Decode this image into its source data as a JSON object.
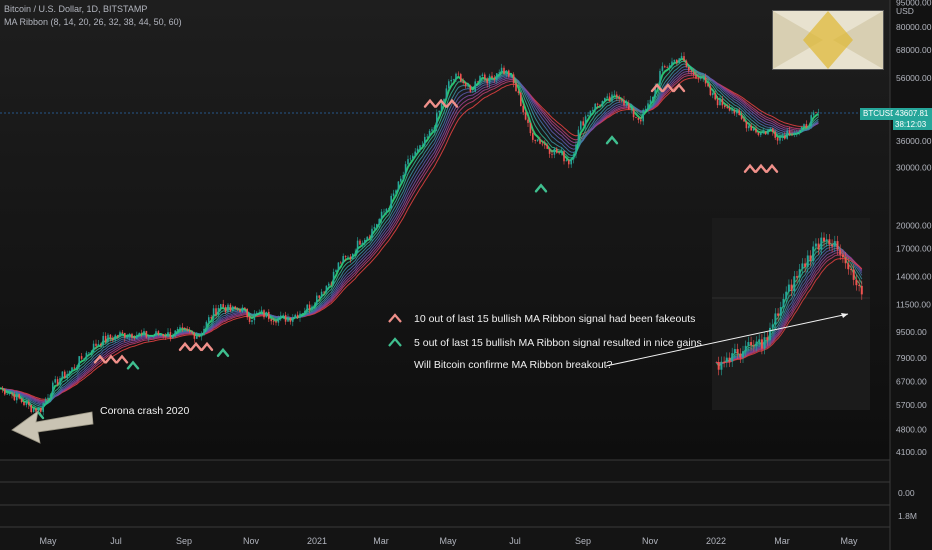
{
  "header": {
    "symbol_line": "Bitcoin / U.S. Dollar, 1D, BITSTAMP",
    "indicator_line": "MA Ribbon (8, 14, 20, 26, 32, 38, 44, 50, 60)"
  },
  "price_label": {
    "ticker": "BTCUSD",
    "price": "43607.81",
    "countdown": "38:12:03"
  },
  "chart_data": {
    "type": "line",
    "y_scale": "log",
    "ylim": [
      3800,
      102000
    ],
    "currency_label": "USD",
    "y_ticks": [
      "95000.00",
      "80000.00",
      "68000.00",
      "56000.00",
      "36000.00",
      "30000.00",
      "20000.00",
      "17000.00",
      "14000.00",
      "11500.00",
      "9500.00",
      "7900.00",
      "6700.00",
      "5700.00",
      "4800.00",
      "4100.00"
    ],
    "x_ticks": [
      "May",
      "Jul",
      "Sep",
      "Nov",
      "2021",
      "Mar",
      "May",
      "Jul",
      "Sep",
      "Nov",
      "2022",
      "Mar",
      "May"
    ],
    "x": [
      0,
      10,
      20,
      30,
      40,
      50,
      60,
      70,
      80,
      90,
      100,
      110,
      120,
      130,
      140,
      150,
      160,
      170,
      180,
      190,
      200,
      210,
      220,
      230,
      240,
      250,
      260,
      270,
      280,
      290,
      300,
      310,
      320,
      330,
      340,
      350,
      360,
      370,
      380,
      390,
      400,
      410,
      420,
      430,
      440,
      450,
      460,
      470,
      480,
      490,
      500,
      510,
      520,
      530,
      540,
      550,
      560,
      570,
      580,
      590,
      600,
      610,
      620,
      630,
      640,
      650,
      660,
      670,
      680,
      690,
      700,
      710,
      720,
      730,
      740,
      750,
      760,
      770,
      780,
      790,
      800,
      810,
      820
    ],
    "series": [
      {
        "values": [
          6400,
          6200,
          5900,
          5600,
          5500,
          6300,
          6900,
          7200,
          7800,
          8400,
          8900,
          9100,
          9300,
          9400,
          9300,
          9200,
          9400,
          9300,
          9500,
          9400,
          9300,
          10500,
          11500,
          11000,
          11200,
          10500,
          10800,
          10600,
          10400,
          10500,
          10900,
          11400,
          12500,
          13500,
          15500,
          16000,
          18000,
          19000,
          21000,
          23500,
          27000,
          32000,
          34000,
          38000,
          45000,
          55000,
          57000,
          50000,
          58000,
          55000,
          60000,
          57000,
          48000,
          38000,
          36000,
          34000,
          33000,
          31000,
          40000,
          45000,
          47000,
          48000,
          50000,
          44000,
          42000,
          47000,
          58000,
          62000,
          65000,
          58000,
          57000,
          50000,
          47000,
          46000,
          42000,
          40000,
          38000,
          39000,
          37000,
          39000,
          38000,
          42000,
          43600
        ]
      }
    ],
    "fakeout_markers": [
      {
        "x": 115,
        "value": 8700
      },
      {
        "x": 200,
        "value": 9500
      },
      {
        "x": 445,
        "value": 52000
      },
      {
        "x": 672,
        "value": 58000
      },
      {
        "x": 765,
        "value": 33000
      }
    ],
    "success_markers": [
      {
        "x": 38,
        "value": 6150
      },
      {
        "x": 133,
        "value": 8700
      },
      {
        "x": 223,
        "value": 9500
      },
      {
        "x": 541,
        "value": 30000
      },
      {
        "x": 612,
        "value": 42000
      }
    ],
    "annotations": {
      "fakeout_text": "10 out of last 15 bullish MA Ribbon signal had been fakeouts",
      "success_text": "5 out of last 15 bullish MA Ribbon signal resulted in nice gains",
      "question_text": "Will Bitcoin confirme MA Ribbon breakout?",
      "crash_text": "Corona crash 2020"
    },
    "lower_panes": {
      "pane1_value": "0.00",
      "pane2_value": "1.8M"
    }
  },
  "colors": {
    "background": "#121212",
    "bull": "#26a69a",
    "bear": "#ef5350",
    "ribbon_fast": "#2ed47a",
    "ribbon_slow": "#e04040",
    "fakeout_marker": "#f0908a",
    "success_marker": "#3fbf8f"
  }
}
